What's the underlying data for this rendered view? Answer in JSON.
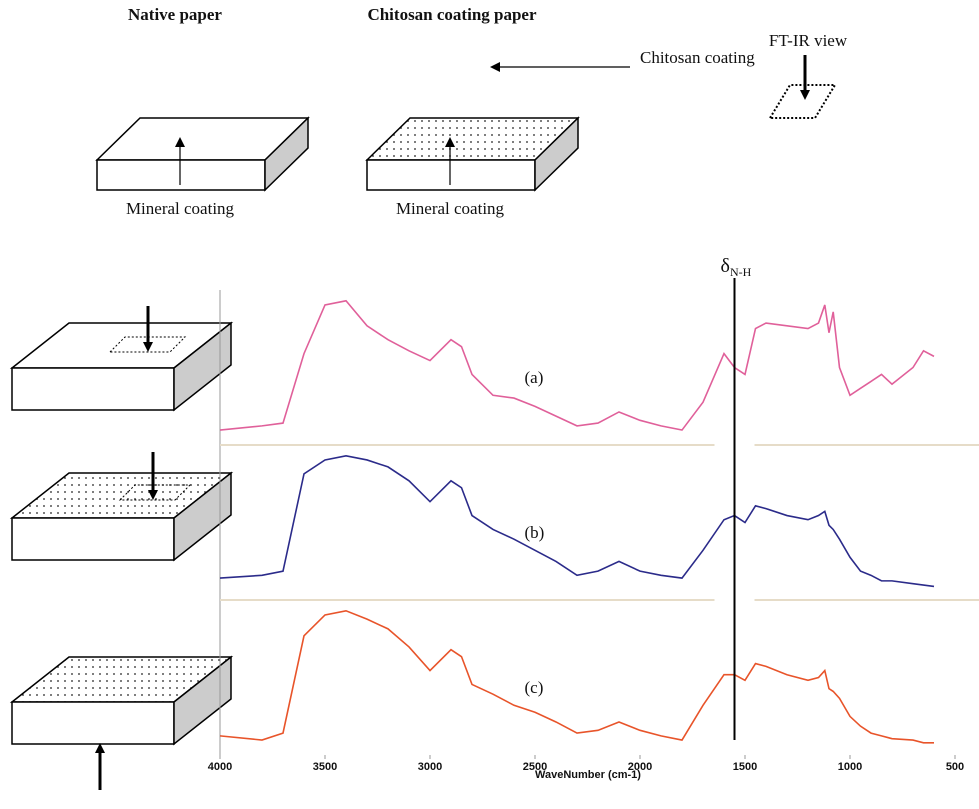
{
  "diagram": {
    "native_title": "Native paper",
    "chitosan_title": "Chitosan coating paper",
    "chitosan_label": "Chitosan coating",
    "mineral_label_1": "Mineral coating",
    "mineral_label_2": "Mineral coating",
    "view_label": "FT-IR view"
  },
  "chart_data": {
    "type": "line",
    "xlabel": "WaveNumber (cm-1)",
    "x": [
      4000,
      3800,
      3700,
      3600,
      3500,
      3400,
      3300,
      3200,
      3100,
      3000,
      2900,
      2850,
      2800,
      2700,
      2600,
      2500,
      2400,
      2300,
      2200,
      2100,
      2000,
      1900,
      1800,
      1700,
      1600,
      1550,
      1500,
      1450,
      1400,
      1300,
      1200,
      1150,
      1120,
      1100,
      1080,
      1050,
      1000,
      950,
      900,
      850,
      800,
      700,
      650,
      600
    ],
    "series": [
      {
        "name": "(a)",
        "color": "#e0609a",
        "values": [
          5,
          8,
          10,
          60,
          95,
          98,
          80,
          70,
          62,
          55,
          70,
          65,
          45,
          30,
          28,
          22,
          15,
          8,
          10,
          18,
          12,
          8,
          5,
          25,
          60,
          50,
          45,
          78,
          82,
          80,
          78,
          82,
          95,
          75,
          90,
          50,
          30,
          35,
          40,
          45,
          38,
          50,
          62,
          58
        ]
      },
      {
        "name": "(b)",
        "color": "#2b2b8a",
        "values": [
          10,
          12,
          15,
          85,
          95,
          98,
          95,
          90,
          80,
          65,
          80,
          75,
          55,
          45,
          38,
          30,
          22,
          12,
          15,
          22,
          15,
          12,
          10,
          30,
          52,
          55,
          50,
          62,
          60,
          55,
          52,
          55,
          58,
          48,
          45,
          38,
          25,
          15,
          12,
          8,
          8,
          6,
          5,
          4
        ]
      },
      {
        "name": "(c)",
        "color": "#e8542a",
        "values": [
          8,
          5,
          10,
          80,
          95,
          98,
          92,
          85,
          72,
          55,
          70,
          65,
          45,
          38,
          30,
          25,
          18,
          10,
          12,
          18,
          12,
          8,
          5,
          30,
          52,
          52,
          48,
          60,
          58,
          52,
          48,
          50,
          55,
          42,
          40,
          35,
          22,
          15,
          10,
          8,
          6,
          5,
          3,
          3
        ]
      }
    ],
    "xlim": [
      4000,
      500
    ],
    "xticks": [
      4000,
      3500,
      3000,
      2500,
      2000,
      1500,
      1000,
      500
    ],
    "ylim": [
      0,
      100
    ],
    "annotations": [
      {
        "text": "δ",
        "subscript": "N-H",
        "x": 1550
      }
    ]
  }
}
